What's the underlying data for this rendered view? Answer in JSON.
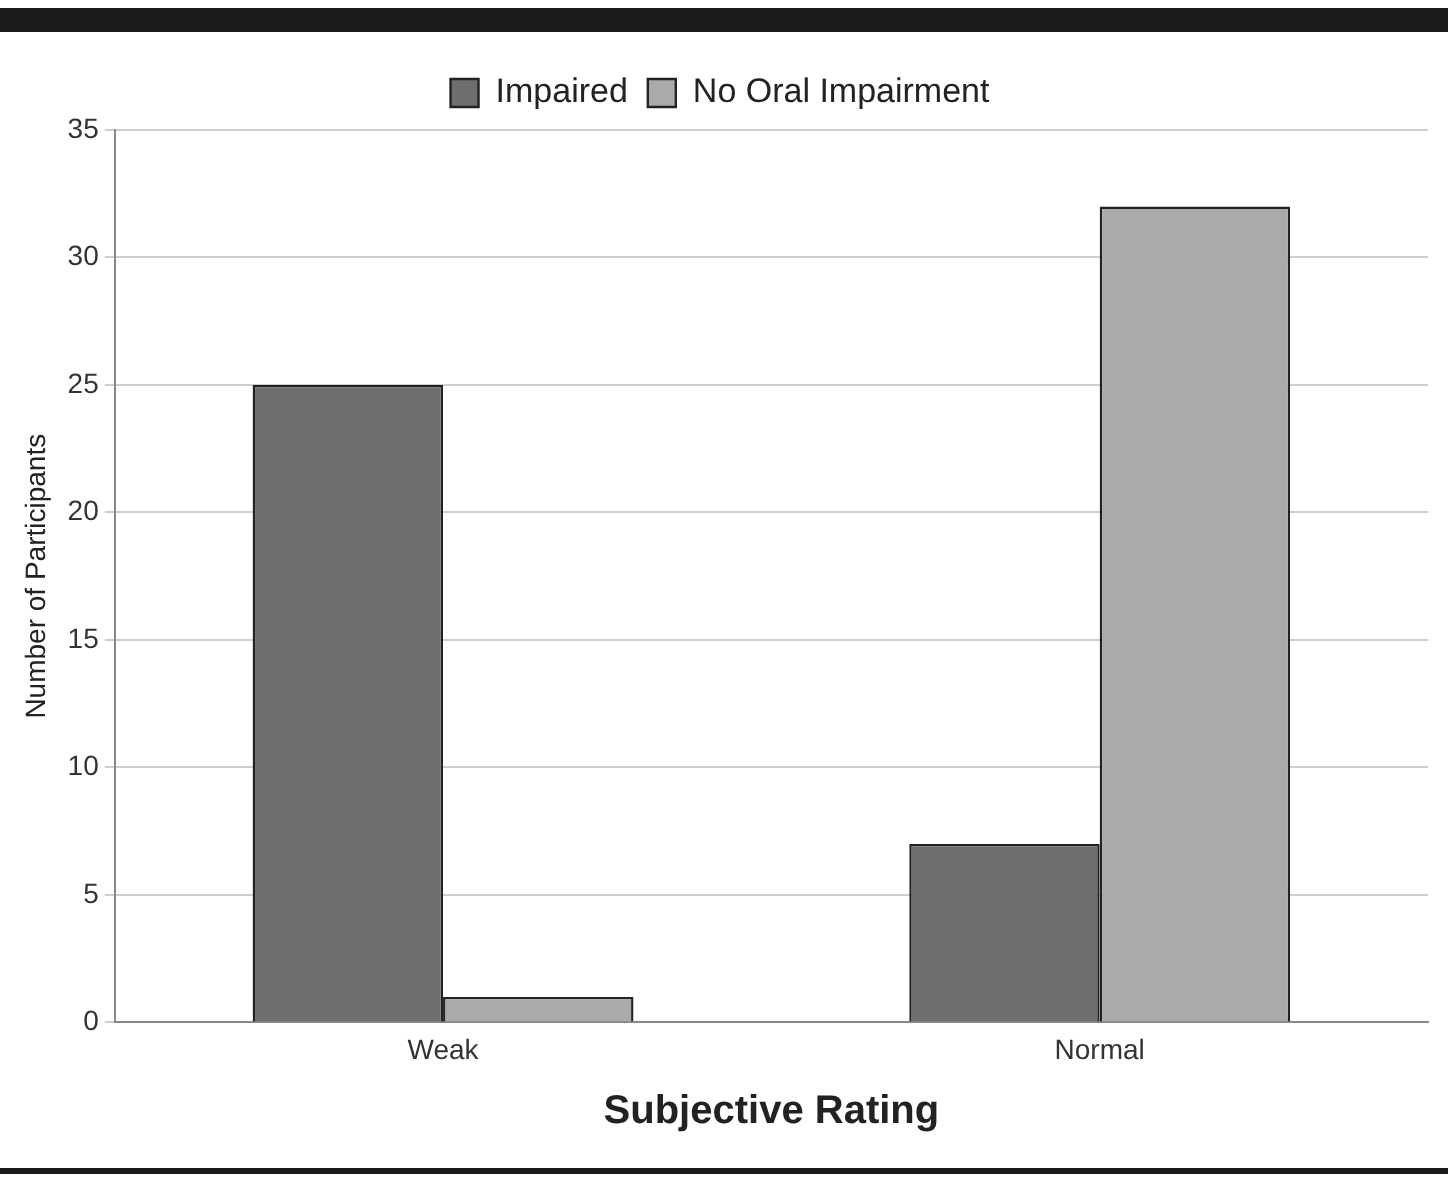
{
  "chart_data": {
    "type": "bar",
    "xlabel": "Subjective Rating",
    "ylabel": "Number of Participants",
    "categories": [
      "Weak",
      "Normal"
    ],
    "series": [
      {
        "name": "Impaired",
        "color": "#6e6e6e",
        "values": [
          25,
          7
        ]
      },
      {
        "name": "No Oral Impairment",
        "color": "#aaaaaa",
        "values": [
          1,
          32
        ]
      }
    ],
    "ylim": [
      0,
      35
    ],
    "yticks": [
      0,
      5,
      10,
      15,
      20,
      25,
      30,
      35
    ],
    "grid": "y",
    "legend": "top"
  }
}
